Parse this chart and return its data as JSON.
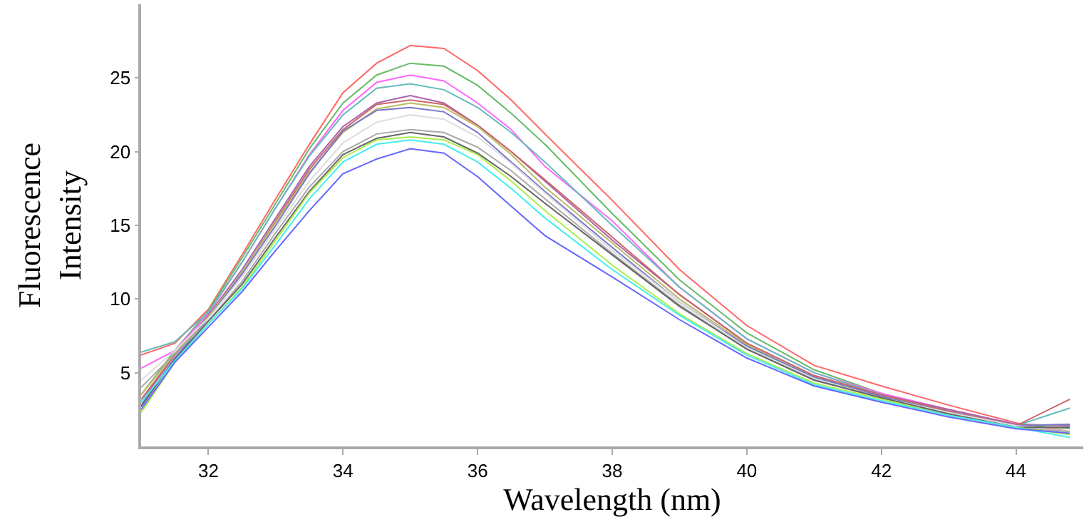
{
  "chart_data": {
    "type": "line",
    "xlabel": "Wavelength (nm)",
    "ylabel": "Fluorescence\nIntensity",
    "x": [
      31,
      31.5,
      32,
      32.5,
      33,
      33.5,
      34,
      34.5,
      35,
      35.5,
      36,
      36.5,
      37,
      38,
      39,
      40,
      41,
      42,
      43,
      44,
      44.8
    ],
    "xlim": [
      31,
      45
    ],
    "xticks": [
      32,
      34,
      36,
      38,
      40,
      42,
      44
    ],
    "ylim": [
      0,
      30
    ],
    "yticks": [
      5,
      10,
      15,
      20,
      25
    ],
    "marker": "none",
    "line_style": "solid",
    "series": [
      {
        "color": "#ff6666",
        "values": [
          6.2,
          7.0,
          9.3,
          13.0,
          16.8,
          20.5,
          24.0,
          26.0,
          27.2,
          27.0,
          25.5,
          23.5,
          21.2,
          16.7,
          12.0,
          8.2,
          5.5,
          4.1,
          2.8,
          1.6,
          1.0
        ]
      },
      {
        "color": "#66bb66",
        "values": [
          3.5,
          6.5,
          9.2,
          12.8,
          16.5,
          20.2,
          23.3,
          25.2,
          26.0,
          25.8,
          24.5,
          22.6,
          20.5,
          15.8,
          11.3,
          7.7,
          5.2,
          3.6,
          2.4,
          1.5,
          1.2
        ]
      },
      {
        "color": "#ff66ff",
        "values": [
          5.3,
          6.5,
          9.0,
          12.5,
          16.2,
          19.8,
          22.8,
          24.7,
          25.2,
          24.8,
          23.3,
          21.5,
          19.0,
          15.3,
          10.8,
          7.3,
          5.0,
          3.6,
          2.5,
          1.5,
          1.4
        ]
      },
      {
        "color": "#66bbbb",
        "values": [
          6.4,
          7.1,
          9.1,
          12.5,
          16.2,
          19.7,
          22.5,
          24.3,
          24.6,
          24.2,
          23.0,
          21.3,
          19.3,
          15.0,
          10.8,
          7.3,
          5.0,
          3.5,
          2.4,
          1.4,
          2.6
        ]
      },
      {
        "color": "#aa66aa",
        "values": [
          3.0,
          6.2,
          8.9,
          12.0,
          15.5,
          19.0,
          21.7,
          23.3,
          23.8,
          23.3,
          21.8,
          20.0,
          18.0,
          14.0,
          10.3,
          7.0,
          4.8,
          3.5,
          2.5,
          1.5,
          1.4
        ]
      },
      {
        "color": "#cc6666",
        "values": [
          3.2,
          6.2,
          8.8,
          11.8,
          15.3,
          18.8,
          21.5,
          23.2,
          23.5,
          23.2,
          21.8,
          20.0,
          18.1,
          14.2,
          10.3,
          7.0,
          4.8,
          3.5,
          2.4,
          1.4,
          3.2
        ]
      },
      {
        "color": "#bbbb66",
        "values": [
          3.5,
          6.3,
          8.8,
          11.8,
          15.2,
          18.6,
          21.3,
          22.9,
          23.3,
          23.0,
          21.7,
          19.8,
          17.6,
          13.8,
          10.0,
          6.9,
          4.7,
          3.4,
          2.3,
          1.4,
          1.5
        ]
      },
      {
        "color": "#7777cc",
        "values": [
          2.8,
          6.0,
          8.7,
          11.7,
          15.0,
          18.5,
          21.4,
          22.8,
          23.0,
          22.7,
          21.3,
          19.3,
          17.3,
          13.5,
          9.8,
          6.8,
          4.7,
          3.4,
          2.3,
          1.4,
          1.5
        ]
      },
      {
        "color": "#dddddd",
        "values": [
          4.5,
          6.5,
          8.7,
          11.5,
          14.8,
          18.0,
          20.6,
          22.0,
          22.5,
          22.2,
          21.0,
          19.2,
          17.2,
          13.3,
          9.8,
          6.7,
          4.6,
          3.3,
          2.3,
          1.4,
          1.0
        ]
      },
      {
        "color": "#aaaaaa",
        "values": [
          4.0,
          6.3,
          8.5,
          11.2,
          14.5,
          17.6,
          20.0,
          21.2,
          21.5,
          21.3,
          20.3,
          18.7,
          16.8,
          13.1,
          9.6,
          6.6,
          4.5,
          3.3,
          2.2,
          1.3,
          1.0
        ]
      },
      {
        "color": "#666666",
        "values": [
          2.7,
          5.9,
          8.5,
          11.0,
          14.2,
          17.3,
          19.8,
          20.9,
          21.3,
          21.0,
          19.9,
          18.3,
          16.5,
          13.0,
          9.5,
          6.6,
          4.5,
          3.3,
          2.2,
          1.3,
          1.3
        ]
      },
      {
        "color": "#aaee44",
        "values": [
          2.3,
          5.7,
          8.3,
          10.8,
          14.0,
          17.2,
          19.6,
          20.8,
          21.0,
          20.8,
          19.8,
          18.0,
          16.0,
          12.3,
          9.0,
          6.3,
          4.3,
          3.2,
          2.1,
          1.3,
          0.8
        ]
      },
      {
        "color": "#44eeee",
        "values": [
          3.0,
          5.8,
          8.3,
          10.7,
          13.7,
          16.8,
          19.3,
          20.5,
          20.8,
          20.5,
          19.3,
          17.5,
          15.5,
          12.0,
          8.9,
          6.2,
          4.2,
          3.1,
          2.1,
          1.3,
          0.6
        ]
      },
      {
        "color": "#6666ff",
        "values": [
          2.5,
          5.7,
          8.1,
          10.5,
          13.3,
          16.0,
          18.5,
          19.5,
          20.2,
          19.9,
          18.3,
          16.3,
          14.3,
          11.5,
          8.6,
          6.0,
          4.1,
          3.0,
          2.0,
          1.2,
          0.9
        ]
      }
    ]
  }
}
